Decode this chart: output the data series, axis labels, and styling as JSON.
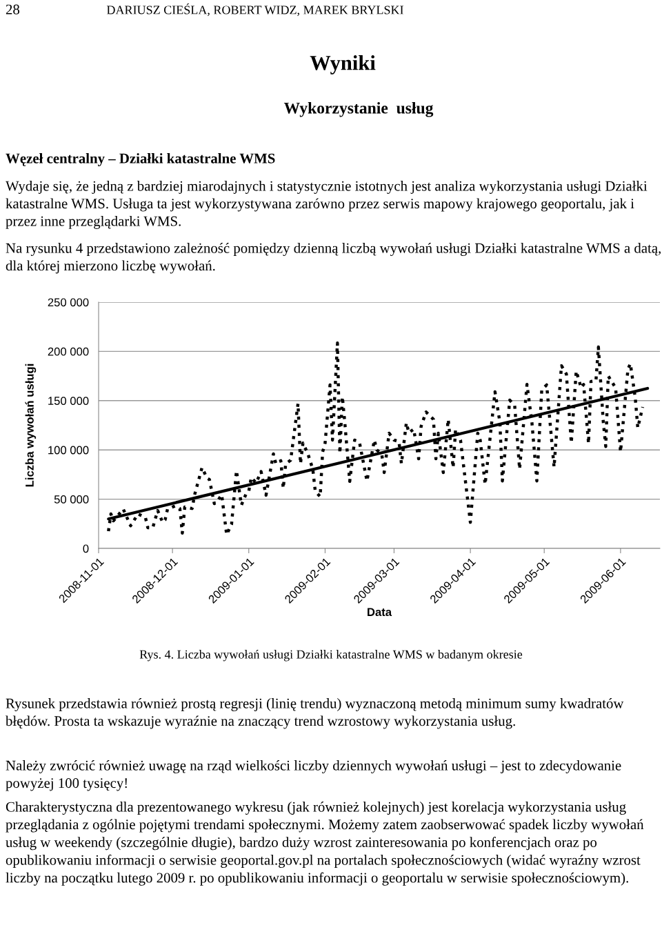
{
  "chart_data": {
    "type": "line",
    "title": "Wyniki",
    "subtitle": "Wykorzystanie  usług",
    "xlabel": "Data",
    "ylabel": "Liczba wywołań usługi",
    "annotations": [
      "28",
      "DARIUSZ CIEŚLA, ROBERT WIDZ, MAREK BRYLSKI",
      "Węzeł centralny – Działki katastralne WMS",
      "Wydaje się, że jedną z bardziej miarodajnych i statystycznie istotnych jest analiza wykorzystania usługi Działki katastralne WMS. Usługa ta jest wykorzystywana zarówno przez serwis mapowy krajowego geoportalu, jak i przez inne przeglądarki WMS.",
      "Na rysunku 4 przedstawiono zależność pomiędzy dzienną liczbą wywołań usługi Działki katastralne WMS a datą, dla której mierzono liczbę wywołań.",
      "Rys. 4. Liczba wywołań usługi Działki katastralne WMS w badanym okresie",
      "Rysunek przedstawia również prostą regresji (linię trendu) wyznaczoną metodą minimum sumy kwadratów błędów. Prosta ta wskazuje wyraźnie na znaczący trend wzrostowy wykorzystania usług.",
      "Należy zwrócić również uwagę na rząd wielkości liczby dziennych wywołań usługi – jest to zdecydowanie powyżej 100 tysięcy!",
      "Charakterystyczna dla prezentowanego wykresu (jak również kolejnych) jest korelacja wykorzystania usług przeglądania z ogólnie pojętymi trendami społecznymi. Możemy zatem zaobserwować spadek liczby wywołań usług w weekendy (szczególnie długie), bardzo duży wzrost zainteresowania po konferencjach oraz po opublikowaniu informacji o serwisie geoportal.gov.pl na portalach społecznościowych (widać wyraźny wzrost liczby na początku lutego 2009 r. po opublikowaniu informacji o geoportalu w serwisie społecznościowym)."
    ],
    "series": [
      {
        "color": "#000000",
        "line_style": "dotted",
        "x": [
          "2008-11-05",
          "2008-11-06",
          "2008-11-07",
          "2008-11-11",
          "2008-11-14",
          "2008-11-17",
          "2008-11-20",
          "2008-11-21",
          "2008-11-23",
          "2008-11-25",
          "2008-11-27",
          "2008-11-28",
          "2008-11-29",
          "2008-12-02",
          "2008-12-04",
          "2008-12-05",
          "2008-12-06",
          "2008-12-09",
          "2008-12-10",
          "2008-12-13",
          "2008-12-15",
          "2008-12-16",
          "2008-12-18",
          "2008-12-19",
          "2008-12-21",
          "2008-12-23",
          "2008-12-25",
          "2008-12-27",
          "2008-12-28",
          "2008-12-29",
          "2008-12-31",
          "2009-01-01",
          "2009-01-02",
          "2009-01-04",
          "2009-01-06",
          "2009-01-08",
          "2009-01-11",
          "2009-01-12",
          "2009-01-14",
          "2009-01-15",
          "2009-01-16",
          "2009-01-18",
          "2009-01-21",
          "2009-01-22",
          "2009-01-23",
          "2009-01-25",
          "2009-01-27",
          "2009-01-28",
          "2009-01-30",
          "2009-01-31",
          "2009-02-01",
          "2009-02-03",
          "2009-02-04",
          "2009-02-06",
          "2009-02-07",
          "2009-02-08",
          "2009-02-09",
          "2009-02-11",
          "2009-02-13",
          "2009-02-15",
          "2009-02-18",
          "2009-02-21",
          "2009-02-22",
          "2009-02-24",
          "2009-02-25",
          "2009-02-27",
          "2009-03-01",
          "2009-03-03",
          "2009-03-04",
          "2009-03-06",
          "2009-03-07",
          "2009-03-09",
          "2009-03-11",
          "2009-03-12",
          "2009-03-14",
          "2009-03-17",
          "2009-03-18",
          "2009-03-19",
          "2009-03-21",
          "2009-03-23",
          "2009-03-25",
          "2009-03-26",
          "2009-03-28",
          "2009-04-01",
          "2009-04-04",
          "2009-04-05",
          "2009-04-07",
          "2009-04-11",
          "2009-04-13",
          "2009-04-14",
          "2009-04-17",
          "2009-04-19",
          "2009-04-21",
          "2009-04-24",
          "2009-04-26",
          "2009-04-28",
          "2009-04-30",
          "2009-05-02",
          "2009-05-05",
          "2009-05-08",
          "2009-05-10",
          "2009-05-12",
          "2009-05-14",
          "2009-05-16",
          "2009-05-17",
          "2009-05-19",
          "2009-05-20",
          "2009-05-22",
          "2009-05-23",
          "2009-05-25",
          "2009-05-26",
          "2009-05-27",
          "2009-05-30",
          "2009-06-01",
          "2009-06-04",
          "2009-06-05",
          "2009-06-07",
          "2009-06-08",
          "2009-06-10"
        ],
        "values": [
          17500,
          35000,
          28000,
          40000,
          23000,
          35000,
          31500,
          21000,
          21000,
          38500,
          26500,
          29000,
          40000,
          43000,
          40500,
          15500,
          42000,
          40500,
          54500,
          82000,
          71500,
          70000,
          45500,
          47000,
          54500,
          14000,
          24500,
          79000,
          61000,
          44000,
          56000,
          58000,
          72000,
          66500,
          78000,
          54000,
          96000,
          86000,
          89000,
          61000,
          86000,
          89500,
          147000,
          86000,
          107000,
          96000,
          80500,
          58000,
          52500,
          98000,
          107000,
          166000,
          110000,
          208500,
          96500,
          154000,
          128000,
          68000,
          110000,
          107000,
          68500,
          110000,
          100000,
          96000,
          77000,
          117000,
          110000,
          108500,
          86000,
          127500,
          117500,
          121000,
          91000,
          124000,
          138500,
          131000,
          91000,
          117000,
          77000,
          131000,
          82000,
          121000,
          110000,
          26500,
          117000,
          110000,
          65000,
          159000,
          128000,
          68500,
          150500,
          145000,
          80500,
          166500,
          128000,
          68500,
          161000,
          166000,
          82500,
          185500,
          177000,
          107000,
          180000,
          163000,
          166500,
          106500,
          169500,
          170000,
          204500,
          128000,
          103500,
          175000,
          163000,
          98000,
          182000,
          187500,
          152500,
          122500,
          143500
        ]
      },
      {
        "color": "#000000",
        "line_style": "solid",
        "x": [
          "2008-11-05",
          "2009-06-12"
        ],
        "values": [
          30000,
          162500
        ]
      }
    ],
    "xlim": [
      "2008-11-01",
      "2009-06-17"
    ],
    "xticks": [
      "2008-11-01",
      "2008-12-01",
      "2009-01-01",
      "2009-02-01",
      "2009-03-01",
      "2009-04-01",
      "2009-05-01",
      "2009-06-01"
    ],
    "ylim": [
      0,
      250000
    ],
    "yticks": [
      {
        "value": 0,
        "label": "0"
      },
      {
        "value": 50000,
        "label": "50 000"
      },
      {
        "value": 100000,
        "label": "100 000"
      },
      {
        "value": 150000,
        "label": "150 000"
      },
      {
        "value": 200000,
        "label": "200 000"
      },
      {
        "value": 250000,
        "label": "250 000"
      }
    ],
    "grid": "y"
  }
}
